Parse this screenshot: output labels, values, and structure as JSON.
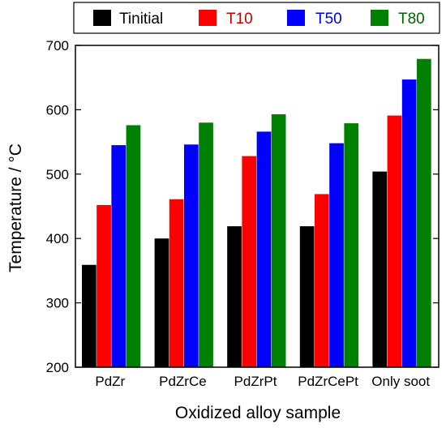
{
  "chart_data": {
    "type": "bar",
    "xlabel": "Oxidized alloy sample",
    "ylabel": "Temperature / °C",
    "ylim": [
      200,
      700
    ],
    "yticks": [
      "200",
      "300",
      "400",
      "500",
      "600",
      "700"
    ],
    "categories": [
      "PdZr",
      "PdZrCe",
      "PdZrPt",
      "PdZrCePt",
      "Only soot"
    ],
    "series": [
      {
        "name": "Tinitial",
        "color": "#000000",
        "text_color": "#000000",
        "values": [
          359,
          400,
          419,
          419,
          504
        ]
      },
      {
        "name": "T10",
        "color": "#ff0000",
        "text_color": "#c00000",
        "values": [
          452,
          461,
          528,
          469,
          591
        ]
      },
      {
        "name": "T50",
        "color": "#0000ff",
        "text_color": "#0000cc",
        "values": [
          545,
          546,
          566,
          548,
          647
        ]
      },
      {
        "name": "T80",
        "color": "#008000",
        "text_color": "#006400",
        "values": [
          576,
          580,
          593,
          579,
          679
        ]
      }
    ],
    "legend_position": "top",
    "grid": false
  }
}
